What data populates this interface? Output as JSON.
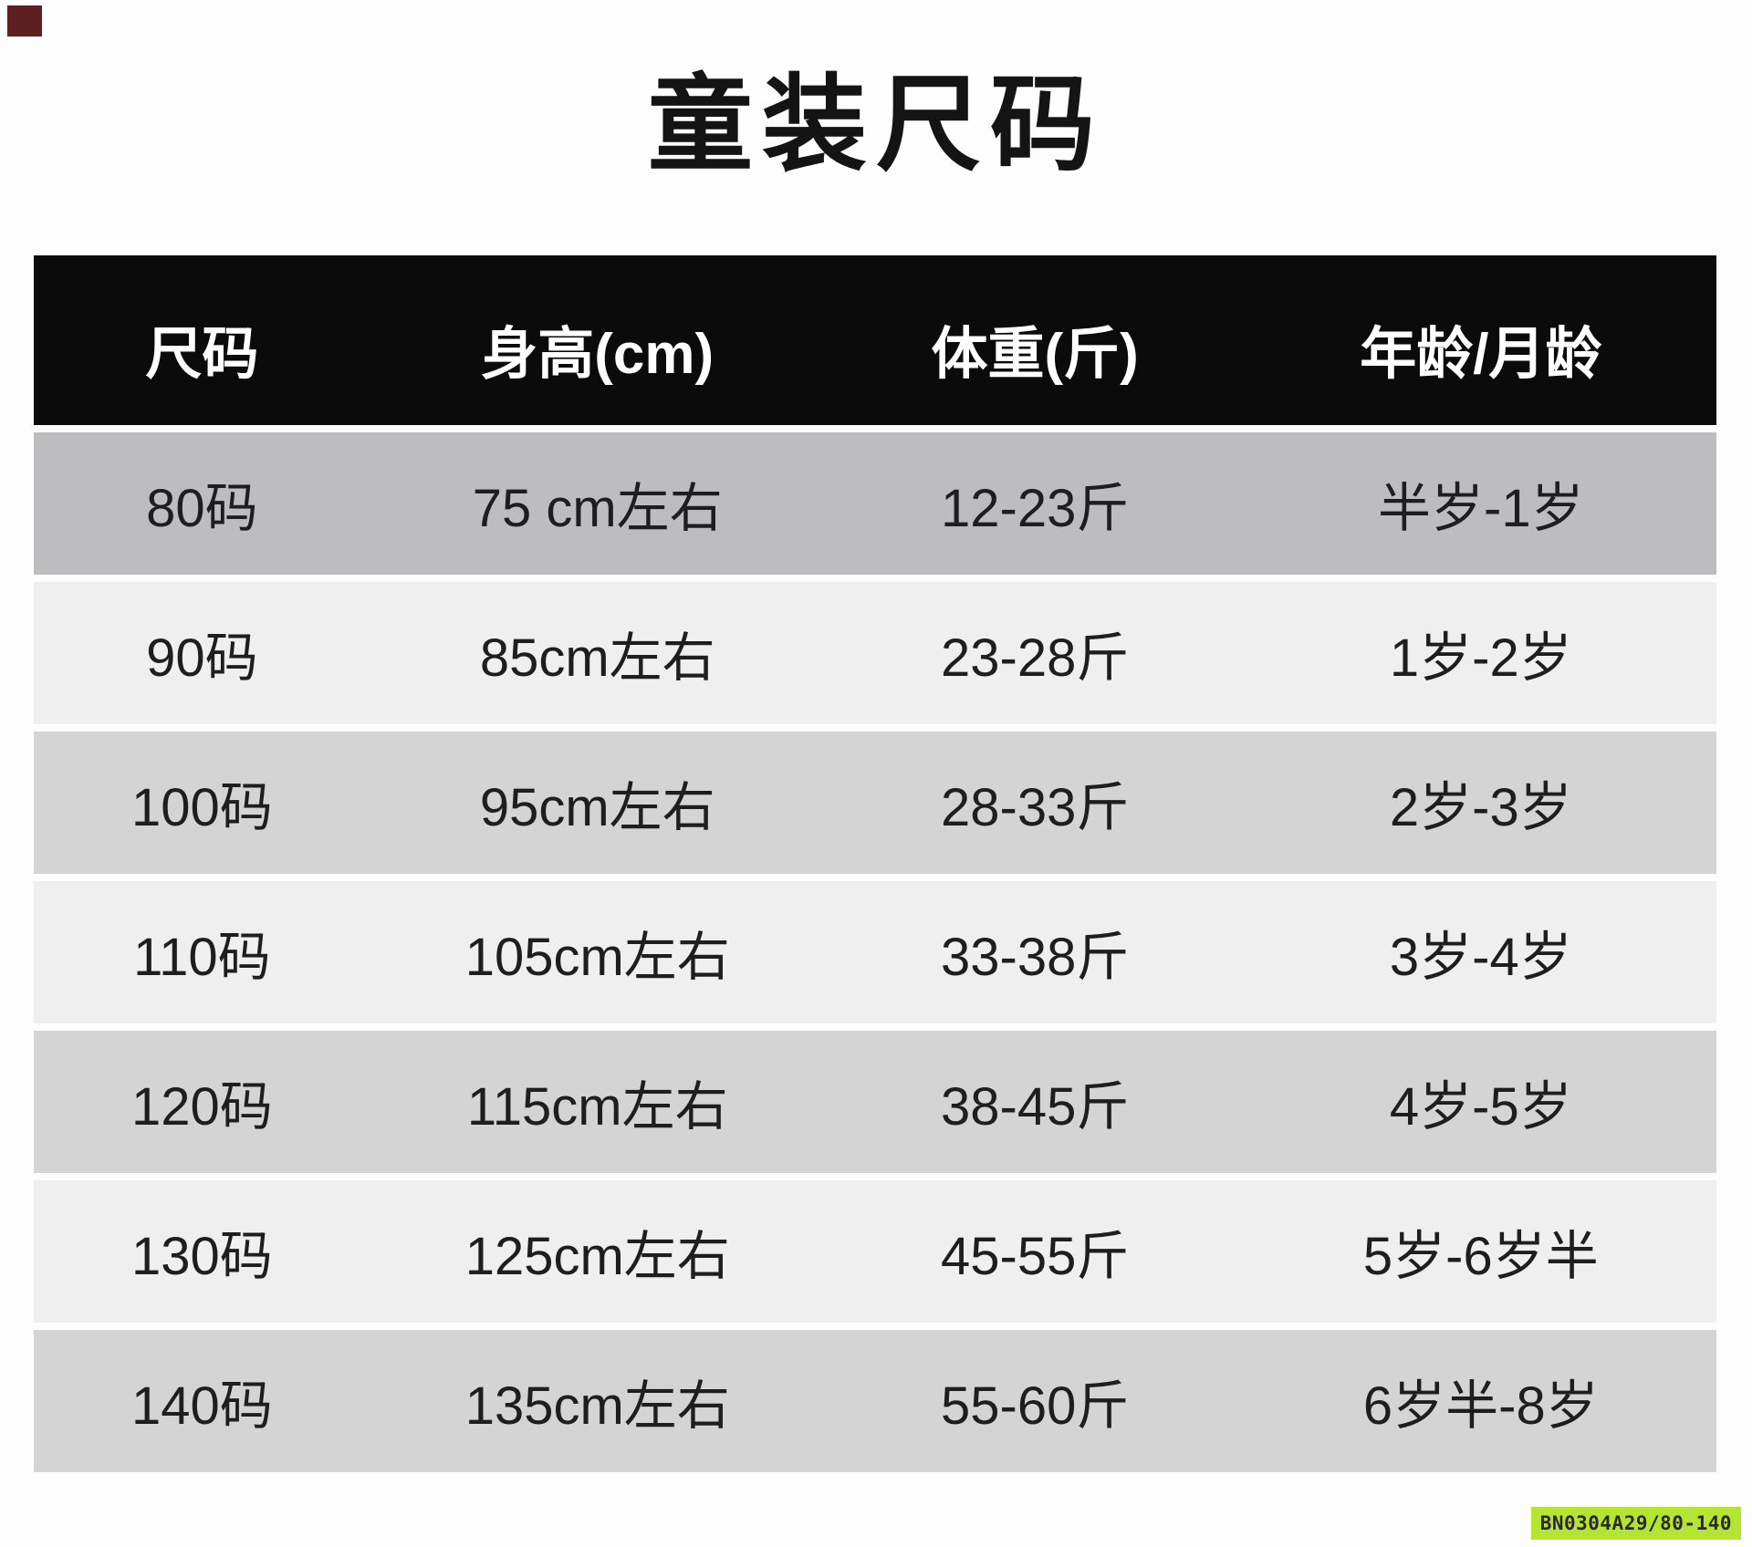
{
  "title": "童装尺码",
  "table": {
    "headers": [
      "尺码",
      "身高(cm)",
      "体重(斤)",
      "年龄/月龄"
    ],
    "rows": [
      {
        "size": "80码",
        "height": "75 cm左右",
        "weight": "12-23斤",
        "age": "半岁-1岁"
      },
      {
        "size": "90码",
        "height": "85cm左右",
        "weight": "23-28斤",
        "age": "1岁-2岁"
      },
      {
        "size": "100码",
        "height": "95cm左右",
        "weight": "28-33斤",
        "age": "2岁-3岁"
      },
      {
        "size": "110码",
        "height": "105cm左右",
        "weight": "33-38斤",
        "age": "3岁-4岁"
      },
      {
        "size": "120码",
        "height": "115cm左右",
        "weight": "38-45斤",
        "age": "4岁-5岁"
      },
      {
        "size": "130码",
        "height": "125cm左右",
        "weight": "45-55斤",
        "age": "5岁-6岁半"
      },
      {
        "size": "140码",
        "height": "135cm左右",
        "weight": "55-60斤",
        "age": "6岁半-8岁"
      }
    ]
  },
  "badge": {
    "text": "BN0304A29/80-140"
  },
  "colors": {
    "page_bg": "#fdfdfd",
    "header_bg": "#0b0b0b",
    "header_text": "#ffffff",
    "row_dark": "#bdbdbf",
    "row_medium": "#d4d4d4",
    "row_light": "#efefef",
    "cell_text": "#1e1e1e",
    "badge_bg": "#b5e533",
    "badge_text": "#2a2a2a"
  }
}
